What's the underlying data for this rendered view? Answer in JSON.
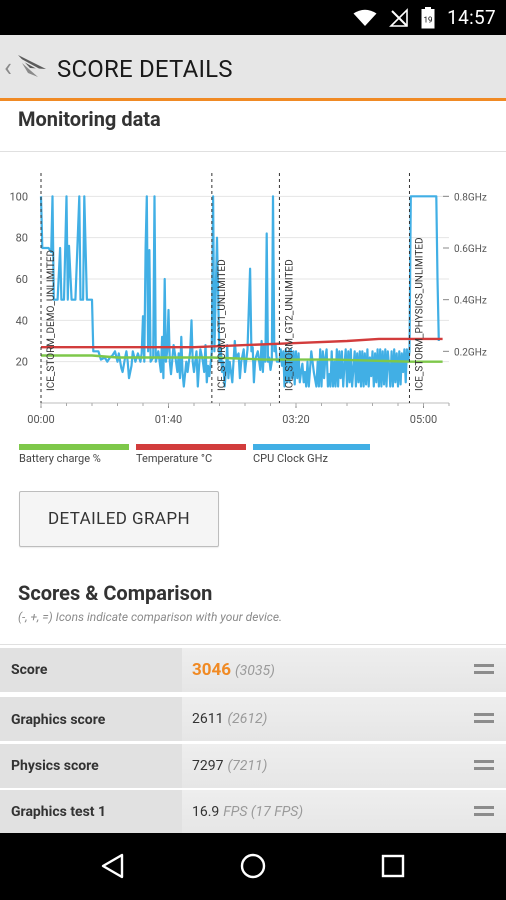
{
  "status_bar": {
    "time": "14:57",
    "battery_level": "19"
  },
  "header": {
    "title": "SCORE DETAILS"
  },
  "monitoring": {
    "title": "Monitoring data"
  },
  "chart_data": {
    "type": "line",
    "x_ticks": [
      "00:00",
      "01:40",
      "03:20",
      "05:00"
    ],
    "x_tick_seconds": [
      0,
      100,
      200,
      300
    ],
    "x_range_seconds": [
      0,
      320
    ],
    "y_left": {
      "range": [
        0,
        105
      ],
      "ticks": [
        20,
        40,
        60,
        80,
        100
      ]
    },
    "y_right": {
      "unit": "GHz",
      "ticks": [
        "0.2GHz",
        "0.4GHz",
        "0.6GHz",
        "0.8GHz"
      ],
      "tick_values": [
        0.2,
        0.4,
        0.6,
        0.8
      ]
    },
    "markers": [
      {
        "label": "ICE_STORM_DEMO_UNLIMITED",
        "x": 0
      },
      {
        "label": "ICE_STORM_GT1_UNLIMITED",
        "x": 134
      },
      {
        "label": "ICE_STORM_GT2_UNLIMITED",
        "x": 187
      },
      {
        "label": "ICE_STORM_PHYSICS_UNLIMITED",
        "x": 289
      }
    ],
    "series": [
      {
        "name": "Battery charge %",
        "color": "#7ec84a",
        "points": [
          [
            0,
            23
          ],
          [
            40,
            23
          ],
          [
            60,
            22
          ],
          [
            134,
            22
          ],
          [
            175,
            21
          ],
          [
            230,
            21
          ],
          [
            290,
            20
          ],
          [
            315,
            20
          ]
        ]
      },
      {
        "name": "Temperature °C",
        "color": "#d23c3c",
        "points": [
          [
            0,
            27
          ],
          [
            60,
            27
          ],
          [
            120,
            27
          ],
          [
            160,
            28
          ],
          [
            200,
            29
          ],
          [
            240,
            30
          ],
          [
            265,
            31
          ],
          [
            289,
            31
          ],
          [
            315,
            31
          ]
        ]
      },
      {
        "name": "CPU Clock GHz",
        "color": "#41afe5",
        "points": [
          [
            0,
            100
          ],
          [
            1,
            75
          ],
          [
            6,
            75
          ],
          [
            8,
            73
          ],
          [
            9,
            100
          ],
          [
            10,
            50
          ],
          [
            13,
            50
          ],
          [
            15,
            75
          ],
          [
            16,
            50
          ],
          [
            18,
            50
          ],
          [
            20,
            100
          ],
          [
            21,
            50
          ],
          [
            22,
            76
          ],
          [
            24,
            50
          ],
          [
            27,
            50
          ],
          [
            30,
            100
          ],
          [
            31,
            50
          ],
          [
            33,
            50
          ],
          [
            34,
            100
          ],
          [
            36,
            50
          ],
          [
            38,
            50
          ],
          [
            40,
            50
          ],
          [
            41,
            25
          ],
          [
            45,
            25
          ],
          [
            47,
            21
          ],
          [
            50,
            22
          ],
          [
            52,
            20
          ],
          [
            54,
            22
          ],
          [
            56,
            23
          ],
          [
            58,
            25
          ],
          [
            60,
            20
          ],
          [
            61,
            24
          ],
          [
            63,
            17
          ],
          [
            64,
            15
          ],
          [
            66,
            22
          ],
          [
            67,
            25
          ],
          [
            68,
            20
          ],
          [
            69,
            12
          ],
          [
            71,
            18
          ],
          [
            72,
            25
          ],
          [
            74,
            20
          ],
          [
            76,
            24
          ],
          [
            78,
            20
          ],
          [
            79,
            24
          ],
          [
            80,
            42
          ],
          [
            81,
            20
          ],
          [
            82,
            75
          ],
          [
            83,
            100
          ],
          [
            84,
            25
          ],
          [
            85,
            74
          ],
          [
            86,
            20
          ],
          [
            88,
            22
          ],
          [
            89,
            100
          ],
          [
            90,
            20
          ],
          [
            92,
            25
          ],
          [
            94,
            15
          ],
          [
            95,
            32
          ],
          [
            96,
            12
          ],
          [
            97,
            60
          ],
          [
            98,
            20
          ],
          [
            99,
            25
          ],
          [
            100,
            45
          ],
          [
            101,
            20
          ],
          [
            102,
            14
          ],
          [
            104,
            28
          ],
          [
            105,
            24
          ],
          [
            107,
            15
          ],
          [
            108,
            24
          ],
          [
            109,
            12
          ],
          [
            110,
            32
          ],
          [
            111,
            15
          ],
          [
            112,
            8
          ],
          [
            114,
            20
          ],
          [
            115,
            15
          ],
          [
            117,
            25
          ],
          [
            118,
            40
          ],
          [
            119,
            20
          ],
          [
            120,
            15
          ],
          [
            122,
            25
          ],
          [
            123,
            8
          ],
          [
            124,
            18
          ],
          [
            125,
            26
          ],
          [
            127,
            20
          ],
          [
            128,
            15
          ],
          [
            129,
            28
          ],
          [
            130,
            10
          ],
          [
            131,
            18
          ],
          [
            132,
            13
          ],
          [
            133,
            19
          ],
          [
            134,
            25
          ],
          [
            135,
            100
          ],
          [
            136,
            25
          ],
          [
            138,
            80
          ],
          [
            140,
            20
          ],
          [
            141,
            27
          ],
          [
            142,
            15
          ],
          [
            143,
            20
          ],
          [
            144,
            8
          ],
          [
            145,
            15
          ],
          [
            146,
            28
          ],
          [
            147,
            12
          ],
          [
            148,
            20
          ],
          [
            150,
            10
          ],
          [
            151,
            20
          ],
          [
            152,
            30
          ],
          [
            153,
            22
          ],
          [
            155,
            24
          ],
          [
            156,
            12
          ],
          [
            157,
            20
          ],
          [
            158,
            23
          ],
          [
            159,
            26
          ],
          [
            160,
            15
          ],
          [
            162,
            26
          ],
          [
            164,
            65
          ],
          [
            165,
            25
          ],
          [
            166,
            27
          ],
          [
            167,
            10
          ],
          [
            168,
            21
          ],
          [
            170,
            25
          ],
          [
            172,
            16
          ],
          [
            173,
            30
          ],
          [
            174,
            15
          ],
          [
            175,
            28
          ],
          [
            176,
            20
          ],
          [
            177,
            82
          ],
          [
            178,
            20
          ],
          [
            179,
            22
          ],
          [
            180,
            16
          ],
          [
            181,
            20
          ],
          [
            182,
            100
          ],
          [
            183,
            25
          ],
          [
            184,
            28
          ],
          [
            185,
            20
          ],
          [
            187,
            20
          ],
          [
            188,
            26
          ],
          [
            189,
            18
          ],
          [
            190,
            25
          ],
          [
            191,
            8
          ],
          [
            192,
            26
          ],
          [
            193,
            10
          ],
          [
            194,
            25
          ],
          [
            195,
            10
          ],
          [
            196,
            26
          ],
          [
            197,
            12
          ],
          [
            198,
            25
          ],
          [
            199,
            9
          ],
          [
            200,
            25
          ],
          [
            201,
            12
          ],
          [
            202,
            24
          ],
          [
            203,
            10
          ],
          [
            204,
            15
          ],
          [
            205,
            19
          ],
          [
            206,
            10
          ],
          [
            207,
            15
          ],
          [
            208,
            8
          ],
          [
            209,
            20
          ],
          [
            210,
            8
          ],
          [
            211,
            16
          ],
          [
            212,
            25
          ],
          [
            214,
            15
          ],
          [
            216,
            8
          ],
          [
            217,
            20
          ],
          [
            218,
            8
          ],
          [
            219,
            26
          ],
          [
            220,
            8
          ],
          [
            221,
            25
          ],
          [
            222,
            12
          ],
          [
            223,
            22
          ],
          [
            224,
            26
          ],
          [
            225,
            8
          ],
          [
            226,
            14
          ],
          [
            227,
            8
          ],
          [
            228,
            25
          ],
          [
            229,
            8
          ],
          [
            230,
            20
          ],
          [
            231,
            8
          ],
          [
            232,
            26
          ],
          [
            233,
            8
          ],
          [
            234,
            25
          ],
          [
            235,
            12
          ],
          [
            236,
            25
          ],
          [
            237,
            8
          ],
          [
            238,
            18
          ],
          [
            239,
            26
          ],
          [
            240,
            8
          ],
          [
            241,
            25
          ],
          [
            242,
            10
          ],
          [
            243,
            26
          ],
          [
            244,
            8
          ],
          [
            246,
            25
          ],
          [
            247,
            8
          ],
          [
            248,
            24
          ],
          [
            249,
            10
          ],
          [
            250,
            25
          ],
          [
            251,
            8
          ],
          [
            252,
            25
          ],
          [
            253,
            8
          ],
          [
            254,
            24
          ],
          [
            255,
            9
          ],
          [
            256,
            26
          ],
          [
            257,
            8
          ],
          [
            258,
            22
          ],
          [
            259,
            13
          ],
          [
            260,
            25
          ],
          [
            261,
            8
          ],
          [
            262,
            24
          ],
          [
            263,
            10
          ],
          [
            264,
            26
          ],
          [
            265,
            8
          ],
          [
            266,
            26
          ],
          [
            267,
            8
          ],
          [
            268,
            25
          ],
          [
            269,
            9
          ],
          [
            270,
            26
          ],
          [
            271,
            8
          ],
          [
            272,
            25
          ],
          [
            273,
            18
          ],
          [
            274,
            8
          ],
          [
            275,
            25
          ],
          [
            276,
            8
          ],
          [
            277,
            26
          ],
          [
            278,
            10
          ],
          [
            279,
            24
          ],
          [
            280,
            8
          ],
          [
            281,
            25
          ],
          [
            282,
            9
          ],
          [
            283,
            24
          ],
          [
            284,
            15
          ],
          [
            285,
            26
          ],
          [
            286,
            10
          ],
          [
            287,
            26
          ],
          [
            288,
            20
          ],
          [
            289,
            25
          ],
          [
            290,
            100
          ],
          [
            310,
            100
          ],
          [
            311,
            60
          ],
          [
            312,
            30
          ]
        ]
      }
    ],
    "legend_placement": "bottom"
  },
  "detailed_graph_button": "DETAILED GRAPH",
  "scores": {
    "title": "Scores & Comparison",
    "subtitle": "(-, +, =) Icons indicate comparison with your device.",
    "rows": [
      {
        "label": "Score",
        "value": "3046",
        "compare": "(3035)"
      },
      {
        "label": "Graphics score",
        "value": "2611",
        "compare": "(2612)"
      },
      {
        "label": "Physics score",
        "value": "7297",
        "compare": "(7211)"
      },
      {
        "label": "Graphics test 1",
        "value": "16.9",
        "compare": "FPS (17 FPS)"
      }
    ]
  },
  "colors": {
    "accent": "#f08a24",
    "battery": "#7ec84a",
    "temperature": "#d23c3c",
    "cpu": "#41afe5"
  }
}
